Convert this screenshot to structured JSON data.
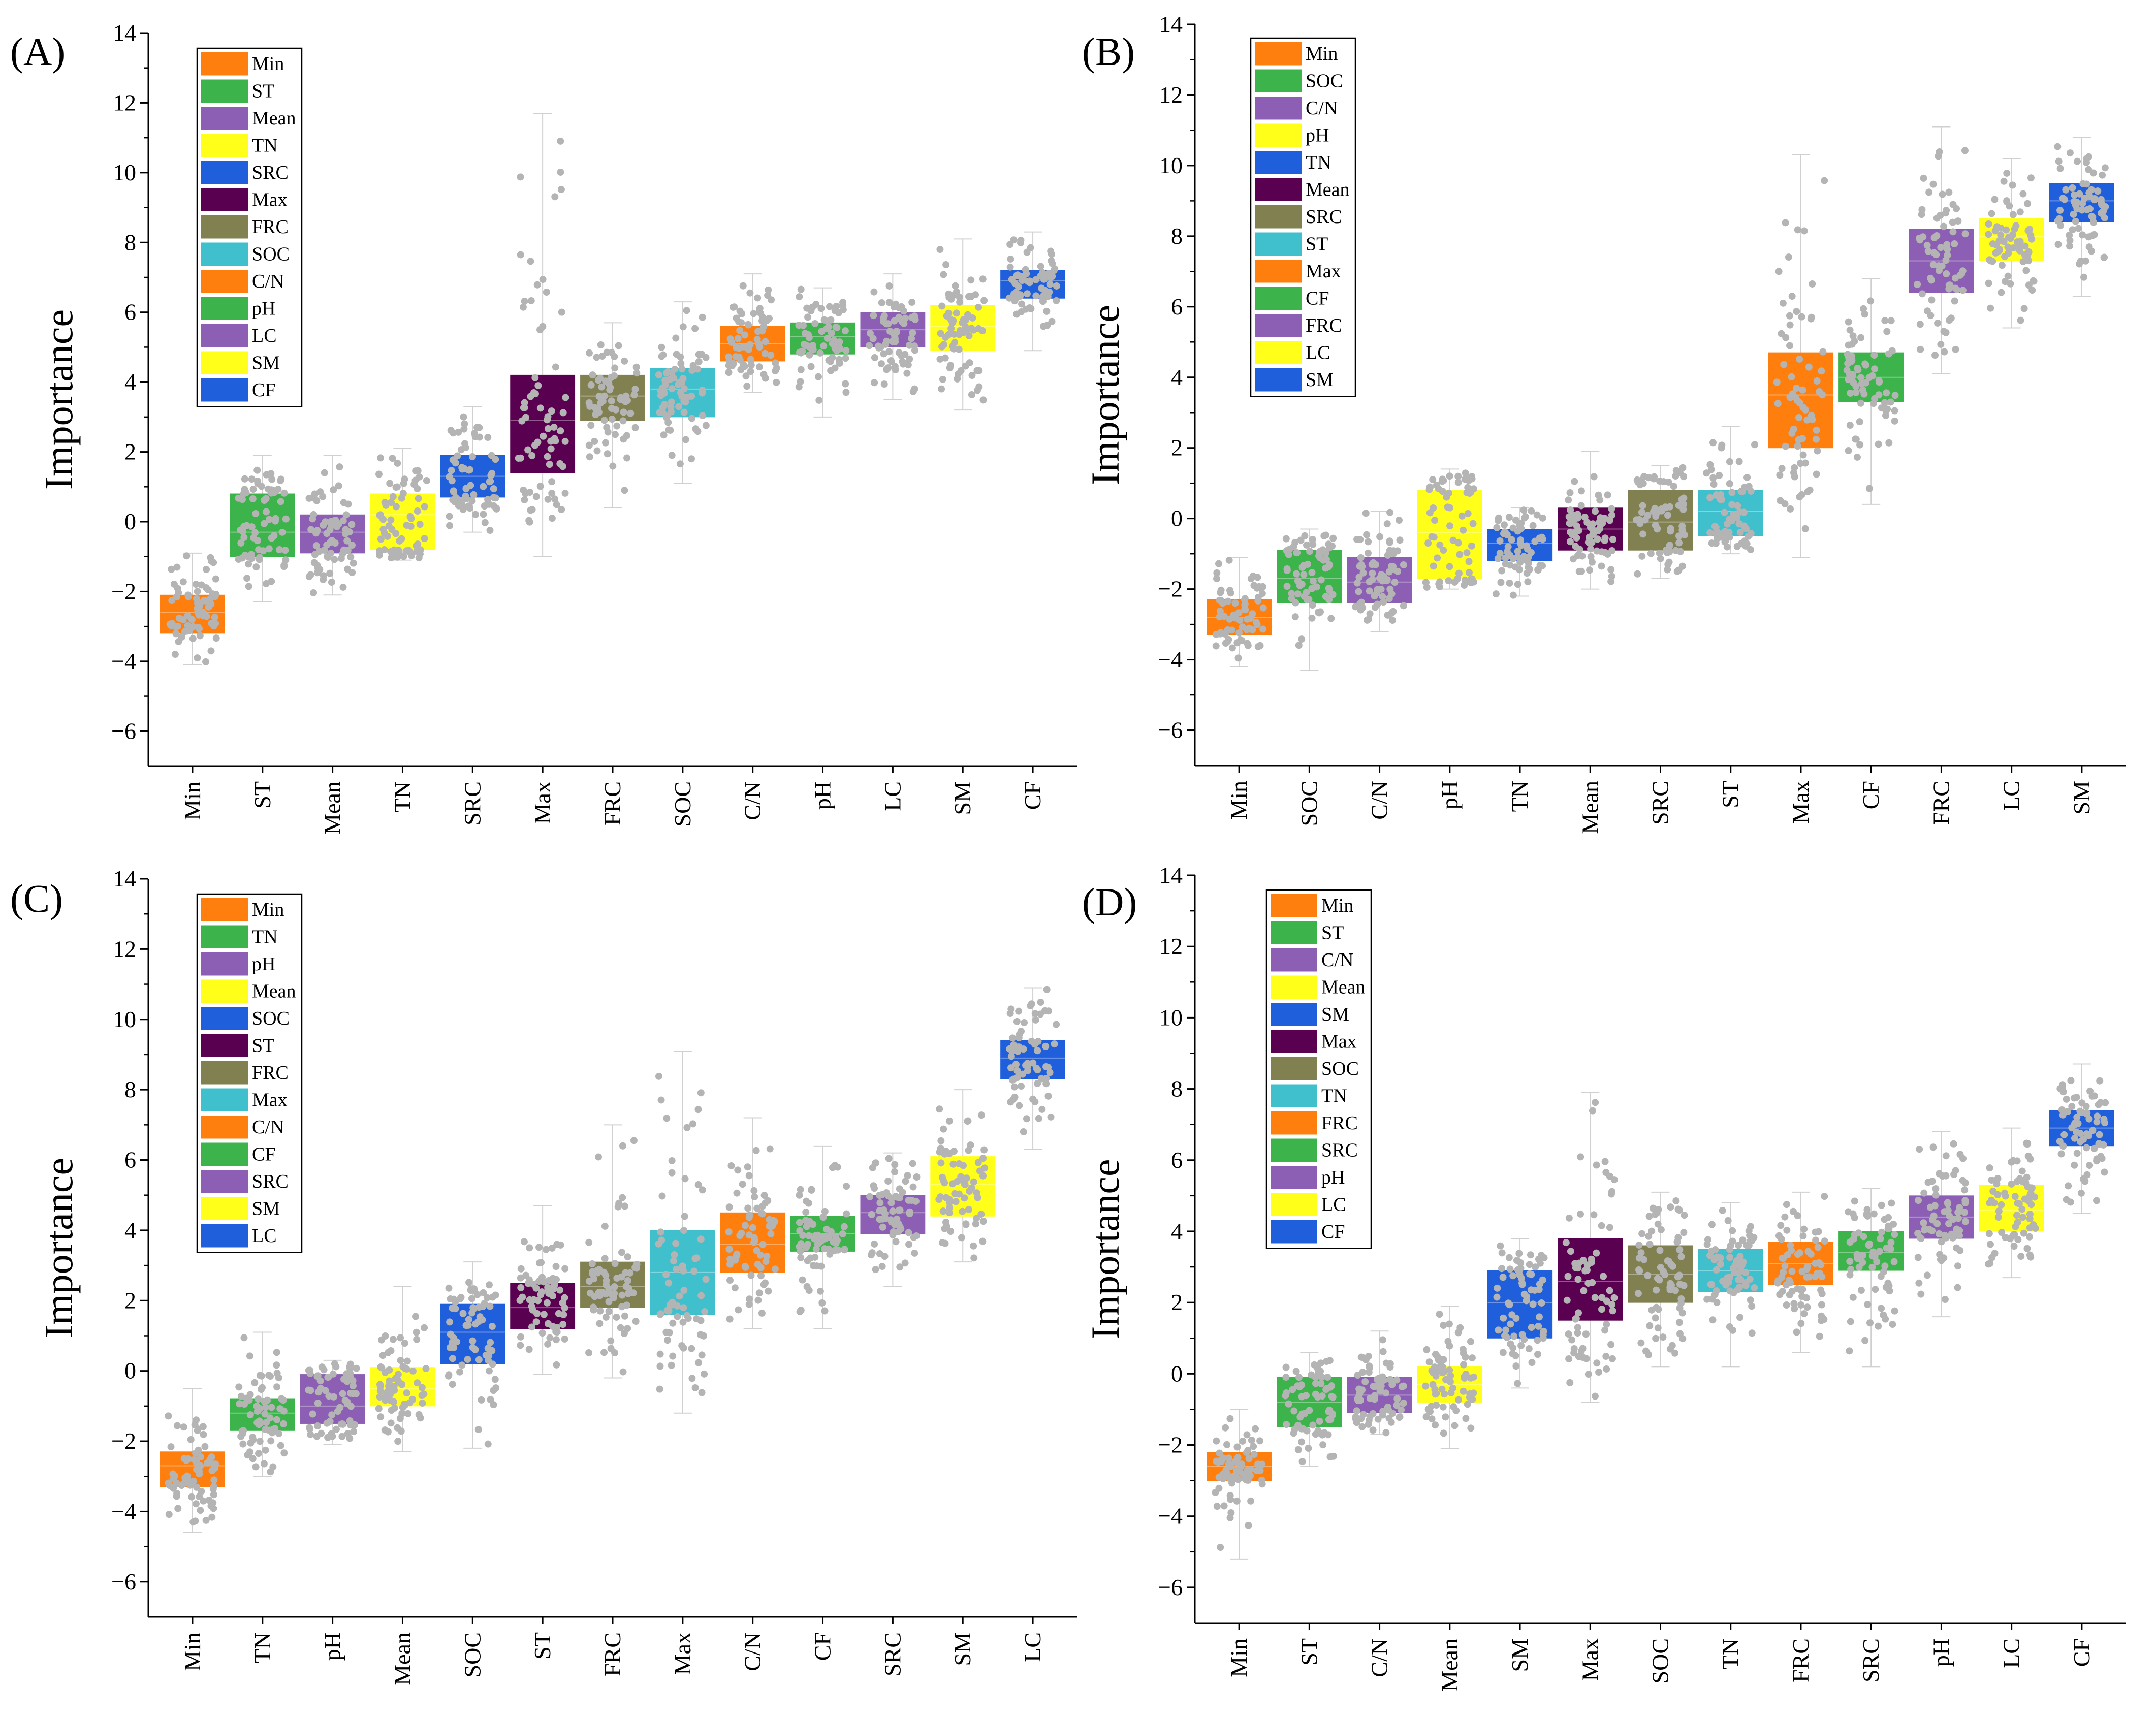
{
  "figure": {
    "axis_title_y": "Importance"
  },
  "colors": {
    "Min": "#ff7f0e",
    "ST": "#3cb44b",
    "Mean": "#8c5fb4",
    "TN": "#ffff1a",
    "SRC": "#1f5fdc",
    "Max": "#5a0050",
    "FRC": "#808050",
    "SOC": "#3fc0cc",
    "C/N": "#ff7f0e",
    "pH": "#3cb44b",
    "LC": "#8c5fb4",
    "SM": "#ffff1a",
    "CF": "#1f5fdc",
    "points": "#b4b4b4"
  },
  "chart_data": [
    {
      "type": "box",
      "panel": "(A)",
      "ylabel": "Importance",
      "ylim": [
        -7,
        14
      ],
      "yticks": [
        -6,
        -4,
        -2,
        0,
        2,
        4,
        6,
        8,
        10,
        12,
        14
      ],
      "categories": [
        "Min",
        "ST",
        "Mean",
        "TN",
        "SRC",
        "Max",
        "FRC",
        "SOC",
        "C/N",
        "pH",
        "LC",
        "SM",
        "CF"
      ],
      "legend": [
        {
          "label": "Min",
          "color": "#ff7f0e"
        },
        {
          "label": "ST",
          "color": "#3cb44b"
        },
        {
          "label": "Mean",
          "color": "#8c5fb4"
        },
        {
          "label": "TN",
          "color": "#ffff1a"
        },
        {
          "label": "SRC",
          "color": "#1f5fdc"
        },
        {
          "label": "Max",
          "color": "#5a0050"
        },
        {
          "label": "FRC",
          "color": "#808050"
        },
        {
          "label": "SOC",
          "color": "#3fc0cc"
        },
        {
          "label": "C/N",
          "color": "#ff7f0e"
        },
        {
          "label": "pH",
          "color": "#3cb44b"
        },
        {
          "label": "LC",
          "color": "#8c5fb4"
        },
        {
          "label": "SM",
          "color": "#ffff1a"
        },
        {
          "label": "CF",
          "color": "#1f5fdc"
        }
      ],
      "boxes": [
        {
          "label": "Min",
          "q1": -3.2,
          "median": -2.6,
          "q3": -2.1,
          "min": -4.1,
          "max": -0.9
        },
        {
          "label": "ST",
          "q1": -1.0,
          "median": -0.3,
          "q3": 0.8,
          "min": -2.3,
          "max": 1.9
        },
        {
          "label": "Mean",
          "q1": -0.9,
          "median": -0.3,
          "q3": 0.2,
          "min": -2.1,
          "max": 1.9
        },
        {
          "label": "TN",
          "q1": -0.8,
          "median": 0.2,
          "q3": 0.8,
          "min": -1.1,
          "max": 2.1
        },
        {
          "label": "SRC",
          "q1": 0.7,
          "median": 1.3,
          "q3": 1.9,
          "min": -0.3,
          "max": 3.3
        },
        {
          "label": "Max",
          "q1": 1.4,
          "median": 2.9,
          "q3": 4.2,
          "min": -1.0,
          "max": 11.7
        },
        {
          "label": "FRC",
          "q1": 2.9,
          "median": 3.6,
          "q3": 4.2,
          "min": 0.4,
          "max": 5.7
        },
        {
          "label": "SOC",
          "q1": 3.0,
          "median": 3.8,
          "q3": 4.4,
          "min": 1.1,
          "max": 6.3
        },
        {
          "label": "C/N",
          "q1": 4.6,
          "median": 5.1,
          "q3": 5.6,
          "min": 3.7,
          "max": 7.1
        },
        {
          "label": "pH",
          "q1": 4.8,
          "median": 5.3,
          "q3": 5.7,
          "min": 3.0,
          "max": 6.7
        },
        {
          "label": "LC",
          "q1": 5.0,
          "median": 5.5,
          "q3": 6.0,
          "min": 3.5,
          "max": 7.1
        },
        {
          "label": "SM",
          "q1": 4.9,
          "median": 5.6,
          "q3": 6.2,
          "min": 3.2,
          "max": 8.1
        },
        {
          "label": "CF",
          "q1": 6.4,
          "median": 6.9,
          "q3": 7.2,
          "min": 4.9,
          "max": 8.3
        }
      ]
    },
    {
      "type": "box",
      "panel": "(B)",
      "ylabel": "Importance",
      "ylim": [
        -7,
        14
      ],
      "yticks": [
        -6,
        -4,
        -2,
        0,
        2,
        4,
        6,
        8,
        10,
        12,
        14
      ],
      "categories": [
        "Min",
        "SOC",
        "C/N",
        "pH",
        "TN",
        "Mean",
        "SRC",
        "ST",
        "Max",
        "CF",
        "FRC",
        "LC",
        "SM"
      ],
      "legend": [
        {
          "label": "Min",
          "color": "#ff7f0e"
        },
        {
          "label": "SOC",
          "color": "#3cb44b"
        },
        {
          "label": "C/N",
          "color": "#8c5fb4"
        },
        {
          "label": "pH",
          "color": "#ffff1a"
        },
        {
          "label": "TN",
          "color": "#1f5fdc"
        },
        {
          "label": "Mean",
          "color": "#5a0050"
        },
        {
          "label": "SRC",
          "color": "#808050"
        },
        {
          "label": "ST",
          "color": "#3fc0cc"
        },
        {
          "label": "Max",
          "color": "#ff7f0e"
        },
        {
          "label": "CF",
          "color": "#3cb44b"
        },
        {
          "label": "FRC",
          "color": "#8c5fb4"
        },
        {
          "label": "LC",
          "color": "#ffff1a"
        },
        {
          "label": "SM",
          "color": "#1f5fdc"
        }
      ],
      "boxes": [
        {
          "label": "Min",
          "q1": -3.3,
          "median": -2.8,
          "q3": -2.3,
          "min": -4.2,
          "max": -1.1
        },
        {
          "label": "SOC",
          "q1": -2.4,
          "median": -1.7,
          "q3": -0.9,
          "min": -4.3,
          "max": -0.3
        },
        {
          "label": "C/N",
          "q1": -2.4,
          "median": -1.8,
          "q3": -1.1,
          "min": -3.2,
          "max": 0.2
        },
        {
          "label": "pH",
          "q1": -1.7,
          "median": -0.4,
          "q3": 0.8,
          "min": -2.0,
          "max": 1.4
        },
        {
          "label": "TN",
          "q1": -1.2,
          "median": -0.7,
          "q3": -0.3,
          "min": -2.2,
          "max": 0.3
        },
        {
          "label": "Mean",
          "q1": -0.9,
          "median": -0.3,
          "q3": 0.3,
          "min": -2.0,
          "max": 1.9
        },
        {
          "label": "SRC",
          "q1": -0.9,
          "median": -0.1,
          "q3": 0.8,
          "min": -1.7,
          "max": 1.5
        },
        {
          "label": "ST",
          "q1": -0.5,
          "median": 0.2,
          "q3": 0.8,
          "min": -1.0,
          "max": 2.6
        },
        {
          "label": "Max",
          "q1": 2.0,
          "median": 3.5,
          "q3": 4.7,
          "min": -1.1,
          "max": 10.3
        },
        {
          "label": "CF",
          "q1": 3.3,
          "median": 4.0,
          "q3": 4.7,
          "min": 0.4,
          "max": 6.8
        },
        {
          "label": "FRC",
          "q1": 6.4,
          "median": 7.3,
          "q3": 8.2,
          "min": 4.1,
          "max": 11.1
        },
        {
          "label": "LC",
          "q1": 7.3,
          "median": 8.0,
          "q3": 8.5,
          "min": 5.4,
          "max": 10.2
        },
        {
          "label": "SM",
          "q1": 8.4,
          "median": 9.0,
          "q3": 9.5,
          "min": 6.3,
          "max": 10.8
        }
      ]
    },
    {
      "type": "box",
      "panel": "(C)",
      "ylabel": "Importance",
      "ylim": [
        -7,
        14
      ],
      "yticks": [
        -6,
        -4,
        -2,
        0,
        2,
        4,
        6,
        8,
        10,
        12,
        14
      ],
      "categories": [
        "Min",
        "TN",
        "pH",
        "Mean",
        "SOC",
        "ST",
        "FRC",
        "Max",
        "C/N",
        "CF",
        "SRC",
        "SM",
        "LC"
      ],
      "legend": [
        {
          "label": "Min",
          "color": "#ff7f0e"
        },
        {
          "label": "TN",
          "color": "#3cb44b"
        },
        {
          "label": "pH",
          "color": "#8c5fb4"
        },
        {
          "label": "Mean",
          "color": "#ffff1a"
        },
        {
          "label": "SOC",
          "color": "#1f5fdc"
        },
        {
          "label": "ST",
          "color": "#5a0050"
        },
        {
          "label": "FRC",
          "color": "#808050"
        },
        {
          "label": "Max",
          "color": "#3fc0cc"
        },
        {
          "label": "C/N",
          "color": "#ff7f0e"
        },
        {
          "label": "CF",
          "color": "#3cb44b"
        },
        {
          "label": "SRC",
          "color": "#8c5fb4"
        },
        {
          "label": "SM",
          "color": "#ffff1a"
        },
        {
          "label": "LC",
          "color": "#1f5fdc"
        }
      ],
      "boxes": [
        {
          "label": "Min",
          "q1": -3.3,
          "median": -2.7,
          "q3": -2.3,
          "min": -4.6,
          "max": -0.5
        },
        {
          "label": "TN",
          "q1": -1.7,
          "median": -1.2,
          "q3": -0.8,
          "min": -3.0,
          "max": 1.1
        },
        {
          "label": "pH",
          "q1": -1.5,
          "median": -1.0,
          "q3": -0.1,
          "min": -2.1,
          "max": 0.3
        },
        {
          "label": "Mean",
          "q1": -1.0,
          "median": -0.5,
          "q3": 0.1,
          "min": -2.3,
          "max": 2.4
        },
        {
          "label": "SOC",
          "q1": 0.2,
          "median": 1.1,
          "q3": 1.9,
          "min": -2.2,
          "max": 3.1
        },
        {
          "label": "ST",
          "q1": 1.2,
          "median": 1.8,
          "q3": 2.5,
          "min": -0.1,
          "max": 4.7
        },
        {
          "label": "FRC",
          "q1": 1.8,
          "median": 2.4,
          "q3": 3.1,
          "min": -0.2,
          "max": 7.0
        },
        {
          "label": "Max",
          "q1": 1.6,
          "median": 2.8,
          "q3": 4.0,
          "min": -1.2,
          "max": 9.1
        },
        {
          "label": "C/N",
          "q1": 2.8,
          "median": 3.6,
          "q3": 4.5,
          "min": 1.2,
          "max": 7.2
        },
        {
          "label": "CF",
          "q1": 3.4,
          "median": 3.9,
          "q3": 4.4,
          "min": 1.2,
          "max": 6.4
        },
        {
          "label": "SRC",
          "q1": 3.9,
          "median": 4.5,
          "q3": 5.0,
          "min": 2.4,
          "max": 6.2
        },
        {
          "label": "SM",
          "q1": 4.4,
          "median": 5.3,
          "q3": 6.1,
          "min": 3.1,
          "max": 8.0
        },
        {
          "label": "LC",
          "q1": 8.3,
          "median": 8.9,
          "q3": 9.4,
          "min": 6.3,
          "max": 10.9
        }
      ]
    },
    {
      "type": "box",
      "panel": "(D)",
      "ylabel": "Importance",
      "ylim": [
        -7,
        14
      ],
      "yticks": [
        -6,
        -4,
        -2,
        0,
        2,
        4,
        6,
        8,
        10,
        12,
        14
      ],
      "categories": [
        "Min",
        "ST",
        "C/N",
        "Mean",
        "SM",
        "Max",
        "SOC",
        "TN",
        "FRC",
        "SRC",
        "pH",
        "LC",
        "CF"
      ],
      "legend": [
        {
          "label": "Min",
          "color": "#ff7f0e"
        },
        {
          "label": "ST",
          "color": "#3cb44b"
        },
        {
          "label": "C/N",
          "color": "#8c5fb4"
        },
        {
          "label": "Mean",
          "color": "#ffff1a"
        },
        {
          "label": "SM",
          "color": "#1f5fdc"
        },
        {
          "label": "Max",
          "color": "#5a0050"
        },
        {
          "label": "SOC",
          "color": "#808050"
        },
        {
          "label": "TN",
          "color": "#3fc0cc"
        },
        {
          "label": "FRC",
          "color": "#ff7f0e"
        },
        {
          "label": "SRC",
          "color": "#3cb44b"
        },
        {
          "label": "pH",
          "color": "#8c5fb4"
        },
        {
          "label": "LC",
          "color": "#ffff1a"
        },
        {
          "label": "CF",
          "color": "#1f5fdc"
        }
      ],
      "boxes": [
        {
          "label": "Min",
          "q1": -3.0,
          "median": -2.6,
          "q3": -2.2,
          "min": -5.2,
          "max": -1.0
        },
        {
          "label": "ST",
          "q1": -1.5,
          "median": -0.8,
          "q3": -0.1,
          "min": -2.6,
          "max": 0.6
        },
        {
          "label": "C/N",
          "q1": -1.1,
          "median": -0.6,
          "q3": -0.1,
          "min": -1.7,
          "max": 1.2
        },
        {
          "label": "Mean",
          "q1": -0.8,
          "median": -0.3,
          "q3": 0.2,
          "min": -2.1,
          "max": 1.9
        },
        {
          "label": "SM",
          "q1": 1.0,
          "median": 2.0,
          "q3": 2.9,
          "min": -0.4,
          "max": 3.8
        },
        {
          "label": "Max",
          "q1": 1.5,
          "median": 2.6,
          "q3": 3.8,
          "min": -0.8,
          "max": 7.9
        },
        {
          "label": "SOC",
          "q1": 2.0,
          "median": 2.8,
          "q3": 3.6,
          "min": 0.2,
          "max": 5.1
        },
        {
          "label": "TN",
          "q1": 2.3,
          "median": 2.9,
          "q3": 3.5,
          "min": 0.2,
          "max": 4.8
        },
        {
          "label": "FRC",
          "q1": 2.5,
          "median": 3.1,
          "q3": 3.7,
          "min": 0.6,
          "max": 5.1
        },
        {
          "label": "SRC",
          "q1": 2.9,
          "median": 3.4,
          "q3": 4.0,
          "min": 0.2,
          "max": 5.2
        },
        {
          "label": "pH",
          "q1": 3.8,
          "median": 4.4,
          "q3": 5.0,
          "min": 1.6,
          "max": 6.8
        },
        {
          "label": "LC",
          "q1": 4.0,
          "median": 4.6,
          "q3": 5.3,
          "min": 2.7,
          "max": 6.9
        },
        {
          "label": "CF",
          "q1": 6.4,
          "median": 6.9,
          "q3": 7.4,
          "min": 4.5,
          "max": 8.7
        }
      ]
    }
  ]
}
